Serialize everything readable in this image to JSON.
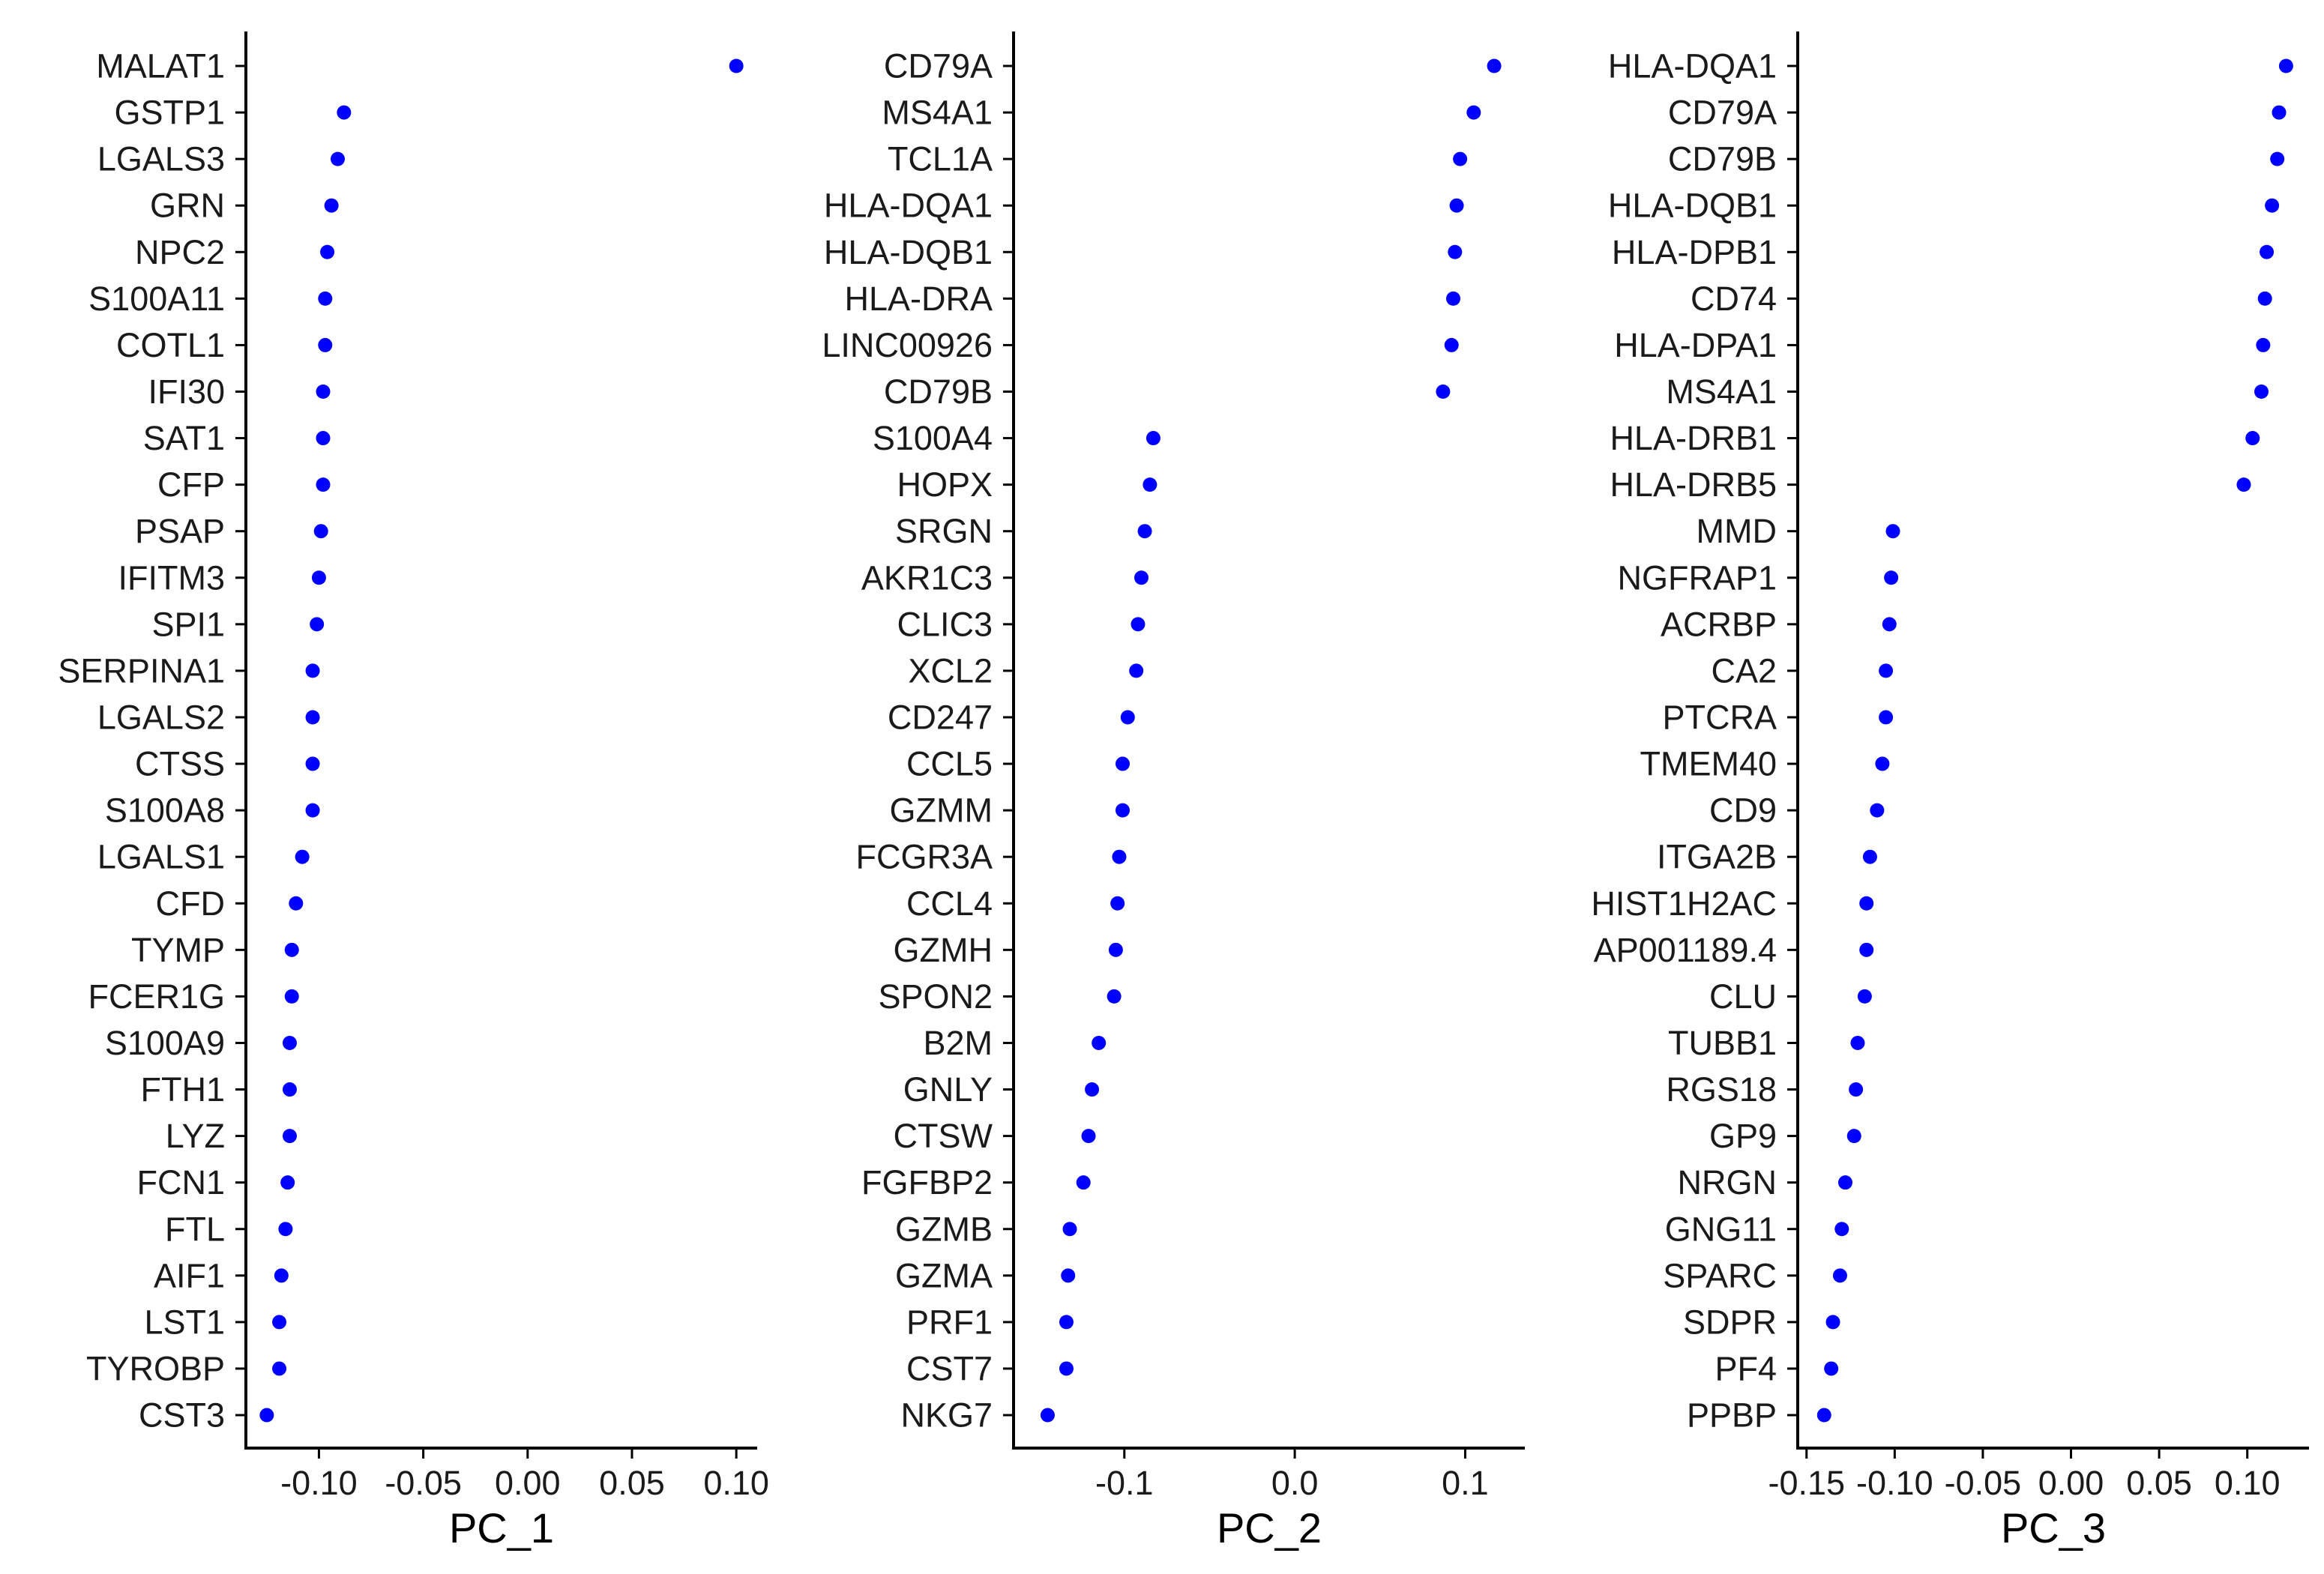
{
  "chart_data": [
    {
      "type": "scatter",
      "xlabel": "PC_1",
      "xticks": [
        "-0.10",
        "-0.05",
        "0.00",
        "0.05",
        "0.10"
      ],
      "xlim": [
        -0.135,
        0.11
      ],
      "dot_color": "#0000ff",
      "genes": [
        "MALAT1",
        "GSTP1",
        "LGALS3",
        "GRN",
        "NPC2",
        "S100A11",
        "COTL1",
        "IFI30",
        "SAT1",
        "CFP",
        "PSAP",
        "IFITM3",
        "SPI1",
        "SERPINA1",
        "LGALS2",
        "CTSS",
        "S100A8",
        "LGALS1",
        "CFD",
        "TYMP",
        "FCER1G",
        "S100A9",
        "FTH1",
        "LYZ",
        "FCN1",
        "FTL",
        "AIF1",
        "LST1",
        "TYROBP",
        "CST3"
      ],
      "values": [
        0.1,
        -0.088,
        -0.091,
        -0.094,
        -0.096,
        -0.097,
        -0.097,
        -0.098,
        -0.098,
        -0.098,
        -0.099,
        -0.1,
        -0.101,
        -0.103,
        -0.103,
        -0.103,
        -0.103,
        -0.108,
        -0.111,
        -0.113,
        -0.113,
        -0.114,
        -0.114,
        -0.114,
        -0.115,
        -0.116,
        -0.118,
        -0.119,
        -0.119,
        -0.125
      ]
    },
    {
      "type": "scatter",
      "xlabel": "PC_2",
      "xticks": [
        "-0.1",
        "0.0",
        "0.1"
      ],
      "xlim": [
        -0.165,
        0.135
      ],
      "dot_color": "#0000ff",
      "genes": [
        "CD79A",
        "MS4A1",
        "TCL1A",
        "HLA-DQA1",
        "HLA-DQB1",
        "HLA-DRA",
        "LINC00926",
        "CD79B",
        "S100A4",
        "HOPX",
        "SRGN",
        "AKR1C3",
        "CLIC3",
        "XCL2",
        "CD247",
        "CCL5",
        "GZMM",
        "FCGR3A",
        "CCL4",
        "GZMH",
        "SPON2",
        "B2M",
        "GNLY",
        "CTSW",
        "FGFBP2",
        "GZMB",
        "GZMA",
        "PRF1",
        "CST7",
        "NKG7"
      ],
      "values": [
        0.117,
        0.105,
        0.097,
        0.095,
        0.094,
        0.093,
        0.092,
        0.087,
        -0.083,
        -0.085,
        -0.088,
        -0.09,
        -0.092,
        -0.093,
        -0.098,
        -0.101,
        -0.101,
        -0.103,
        -0.104,
        -0.105,
        -0.106,
        -0.115,
        -0.119,
        -0.121,
        -0.124,
        -0.132,
        -0.133,
        -0.134,
        -0.134,
        -0.145
      ]
    },
    {
      "type": "scatter",
      "xlabel": "PC_3",
      "xticks": [
        "-0.15",
        "-0.10",
        "-0.05",
        "0.00",
        "0.05",
        "0.10"
      ],
      "xlim": [
        -0.155,
        0.135
      ],
      "dot_color": "#0000ff",
      "genes": [
        "HLA-DQA1",
        "CD79A",
        "CD79B",
        "HLA-DQB1",
        "HLA-DPB1",
        "CD74",
        "HLA-DPA1",
        "MS4A1",
        "HLA-DRB1",
        "HLA-DRB5",
        "MMD",
        "NGFRAP1",
        "ACRBP",
        "CA2",
        "PTCRA",
        "TMEM40",
        "CD9",
        "ITGA2B",
        "HIST1H2AC",
        "AP001189.4",
        "CLU",
        "TUBB1",
        "RGS18",
        "GP9",
        "NRGN",
        "GNG11",
        "SPARC",
        "SDPR",
        "PF4",
        "PPBP"
      ],
      "values": [
        0.122,
        0.118,
        0.117,
        0.114,
        0.111,
        0.11,
        0.109,
        0.108,
        0.103,
        0.098,
        -0.101,
        -0.102,
        -0.103,
        -0.105,
        -0.105,
        -0.107,
        -0.11,
        -0.114,
        -0.116,
        -0.116,
        -0.117,
        -0.121,
        -0.122,
        -0.123,
        -0.128,
        -0.13,
        -0.131,
        -0.135,
        -0.136,
        -0.14
      ]
    }
  ]
}
